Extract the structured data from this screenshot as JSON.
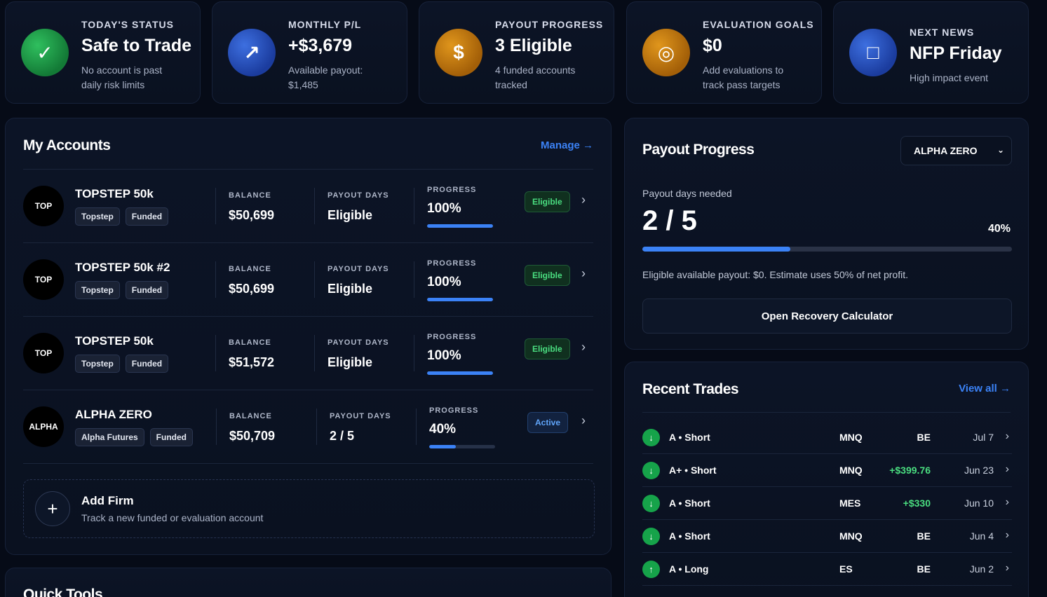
{
  "stats": [
    {
      "label": "TODAY'S STATUS",
      "value": "Safe to Trade",
      "sub": "No account is past daily risk limits",
      "icon": "✓",
      "color": "green"
    },
    {
      "label": "MONTHLY P/L",
      "value": "+$3,679",
      "sub": "Available payout: $1,485",
      "icon": "↗",
      "color": "blue"
    },
    {
      "label": "PAYOUT PROGRESS",
      "value": "3 Eligible",
      "sub": "4 funded accounts tracked",
      "icon": "$",
      "color": "gold"
    },
    {
      "label": "EVALUATION GOALS",
      "value": "$0",
      "sub": "Add evaluations to track pass targets",
      "icon": "◎",
      "color": "gold"
    },
    {
      "label": "NEXT NEWS",
      "value": "NFP Friday",
      "sub": "High impact event",
      "icon": "□",
      "color": "blue"
    }
  ],
  "accounts": {
    "title": "My Accounts",
    "manage": "Manage →",
    "col_balance": "BALANCE",
    "col_payout_days": "PAYOUT DAYS",
    "col_progress": "PROGRESS",
    "items": [
      {
        "logo": "TOP",
        "name": "TOPSTEP 50k",
        "firm": "Topstep",
        "type": "Funded",
        "balance": "$50,699",
        "payout_days": "Eligible",
        "progress": "100%",
        "progress_value": 100,
        "status": "Eligible"
      },
      {
        "logo": "TOP",
        "name": "TOPSTEP 50k #2",
        "firm": "Topstep",
        "type": "Funded",
        "balance": "$50,699",
        "payout_days": "Eligible",
        "progress": "100%",
        "progress_value": 100,
        "status": "Eligible"
      },
      {
        "logo": "TOP",
        "name": "TOPSTEP 50k",
        "firm": "Topstep",
        "type": "Funded",
        "balance": "$51,572",
        "payout_days": "Eligible",
        "progress": "100%",
        "progress_value": 100,
        "status": "Eligible"
      },
      {
        "logo": "ALPHA",
        "name": "ALPHA ZERO",
        "firm": "Alpha Futures",
        "type": "Funded",
        "balance": "$50,709",
        "payout_days": "2 / 5",
        "progress": "40%",
        "progress_value": 40,
        "status": "Active"
      }
    ],
    "add_firm_title": "Add Firm",
    "add_firm_sub": "Track a new funded or evaluation account"
  },
  "quick_tools": {
    "title": "Quick Tools"
  },
  "payout": {
    "title": "Payout Progress",
    "selected_account": "ALPHA ZERO",
    "days_label": "Payout days needed",
    "days_value": "2 / 5",
    "percent": "40%",
    "percent_value": 40,
    "note": "Eligible available payout: $0. Estimate uses 50% of net profit.",
    "button": "Open Recovery Calculator"
  },
  "trades": {
    "title": "Recent Trades",
    "view_all": "View all →",
    "items": [
      {
        "dir": "↓",
        "setup": "A • Short",
        "symbol": "MNQ",
        "result": "BE",
        "positive": false,
        "date": "Jul 7"
      },
      {
        "dir": "↓",
        "setup": "A+ • Short",
        "symbol": "MNQ",
        "result": "+$399.76",
        "positive": true,
        "date": "Jun 23"
      },
      {
        "dir": "↓",
        "setup": "A • Short",
        "symbol": "MES",
        "result": "+$330",
        "positive": true,
        "date": "Jun 10"
      },
      {
        "dir": "↓",
        "setup": "A • Short",
        "symbol": "MNQ",
        "result": "BE",
        "positive": false,
        "date": "Jun 4"
      },
      {
        "dir": "↑",
        "setup": "A • Long",
        "symbol": "ES",
        "result": "BE",
        "positive": false,
        "date": "Jun 2"
      }
    ]
  }
}
